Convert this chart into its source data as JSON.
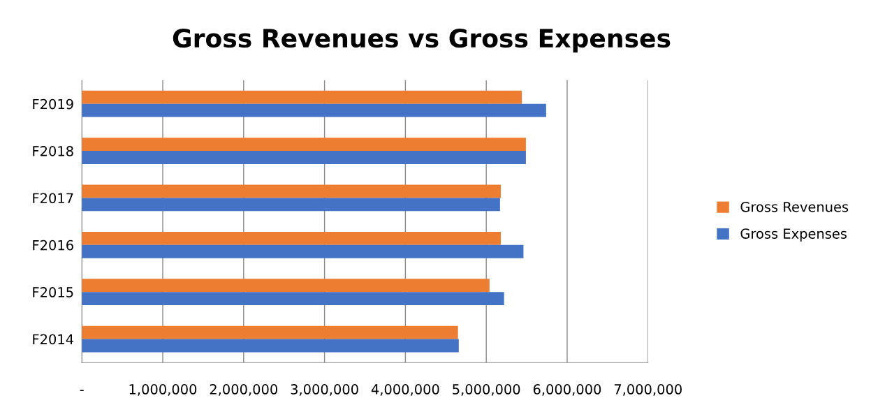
{
  "chart_data": {
    "type": "bar",
    "orientation": "horizontal",
    "title": "Gross Revenues vs Gross Expenses",
    "categories": [
      "F2019",
      "F2018",
      "F2017",
      "F2016",
      "F2015",
      "F2014"
    ],
    "series": [
      {
        "name": "Gross Revenues",
        "color": "#ed7d31",
        "values": [
          5440000,
          5490000,
          5180000,
          5180000,
          5040000,
          4650000
        ]
      },
      {
        "name": "Gross Expenses",
        "color": "#4472c4",
        "values": [
          5740000,
          5490000,
          5170000,
          5460000,
          5220000,
          4660000
        ]
      }
    ],
    "xlim": [
      0,
      7000000
    ],
    "xticks": [
      {
        "value": 0,
        "label": "-"
      },
      {
        "value": 1000000,
        "label": "1,000,000"
      },
      {
        "value": 2000000,
        "label": "2,000,000"
      },
      {
        "value": 3000000,
        "label": "3,000,000"
      },
      {
        "value": 4000000,
        "label": "4,000,000"
      },
      {
        "value": 5000000,
        "label": "5,000,000"
      },
      {
        "value": 6000000,
        "label": "6,000,000"
      },
      {
        "value": 7000000,
        "label": "7,000,000"
      }
    ],
    "grid": "x",
    "legend": "right"
  }
}
